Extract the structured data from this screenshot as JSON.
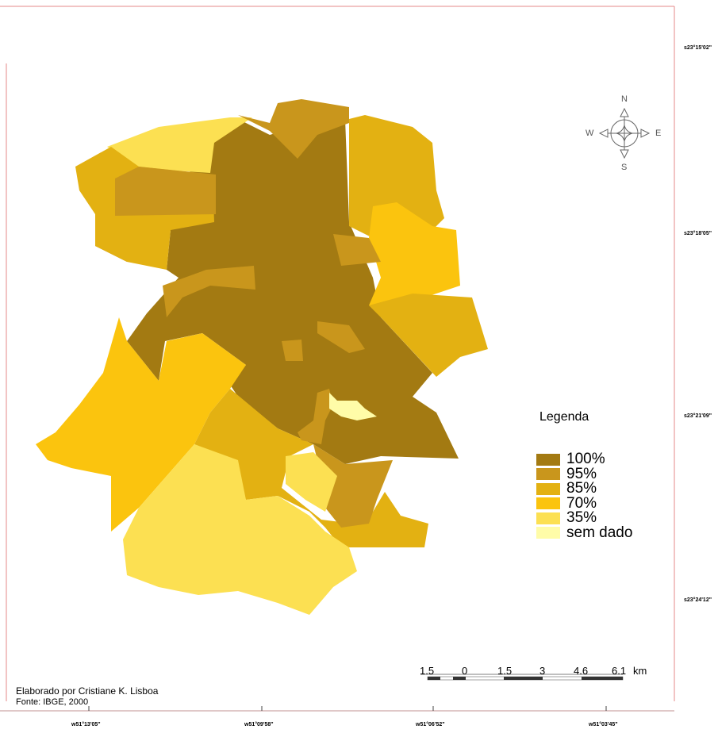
{
  "legend": {
    "title": "Legenda",
    "items": [
      {
        "label": "100%",
        "color": "#a37a12"
      },
      {
        "label": "95%",
        "color": "#c9961c"
      },
      {
        "label": "85%",
        "color": "#e3b112"
      },
      {
        "label": "70%",
        "color": "#fbc40e"
      },
      {
        "label": "35%",
        "color": "#fce052"
      },
      {
        "label": "sem dado",
        "color": "#fffca8"
      }
    ]
  },
  "compass": {
    "n": "N",
    "s": "S",
    "e": "E",
    "w": "W"
  },
  "scale_bar": {
    "labels": [
      "1.5",
      "0",
      "1.5",
      "3",
      "4.6",
      "6.1"
    ],
    "unit": "km"
  },
  "credits": {
    "author": "Elaborado por Cristiane K. Lisboa",
    "source": "Fonte: IBGE, 2000"
  },
  "latitude_labels": [
    "s23°15'02\"",
    "s23°18'05\"",
    "s23°21'09\"",
    "s23°24'12\""
  ],
  "longitude_labels": [
    "w51°13'05\"",
    "w51°09'58\"",
    "w51°06'52\"",
    "w51°03'45\""
  ],
  "frame_color": "#e07070"
}
